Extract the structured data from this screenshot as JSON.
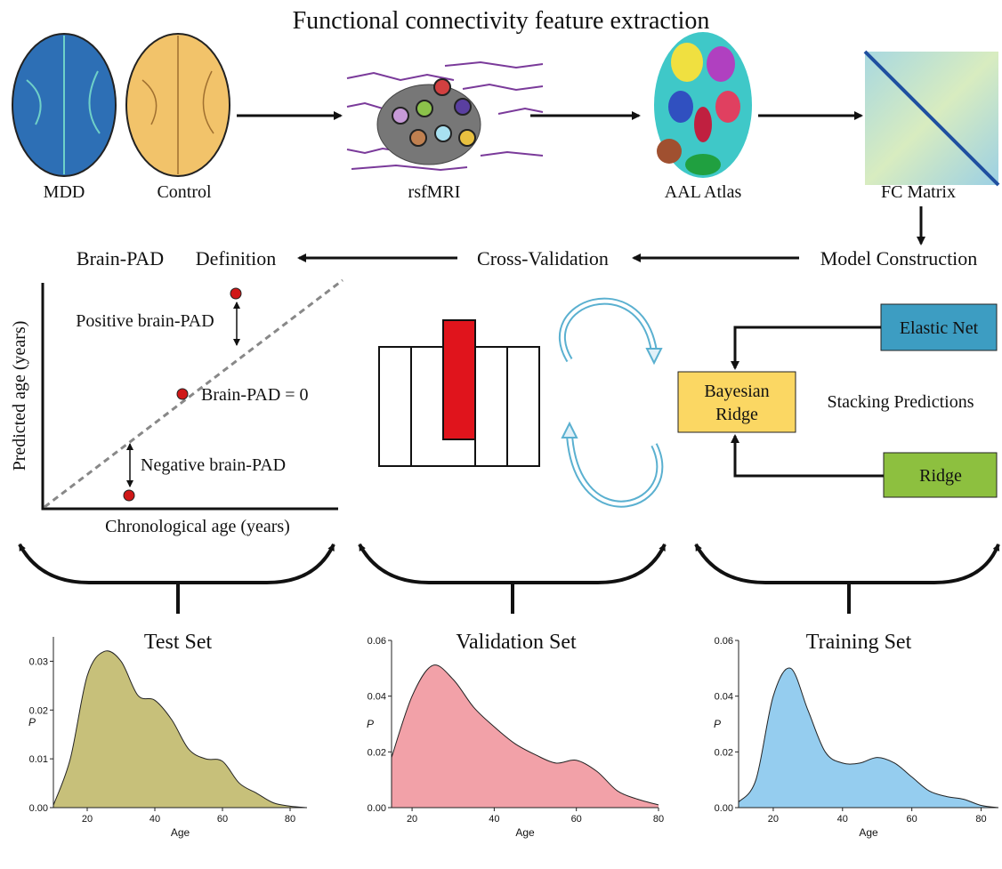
{
  "title": "Functional connectivity feature extraction",
  "images": {
    "mdd": "MDD",
    "control": "Control",
    "rsfmri": "rsfMRI",
    "atlas": "AAL Atlas",
    "fc_matrix": "FC Matrix"
  },
  "steps": {
    "model": "Model Construction",
    "cv": "Cross-Validation",
    "brain_pad": "Brain-PAD",
    "definition": "Definition"
  },
  "brain_pad_plot": {
    "y_axis": "Predicted age (years)",
    "x_axis": "Chronological age (years)",
    "positive": "Positive brain-PAD",
    "zero": "Brain-PAD = 0",
    "negative": "Negative brain-PAD"
  },
  "stacking": {
    "elastic_net": "Elastic Net",
    "ridge": "Ridge",
    "bayesian_ridge": [
      "Bayesian",
      "Ridge"
    ],
    "label": "Stacking Predictions"
  },
  "chart_data": [
    {
      "type": "area",
      "title": "Test Set",
      "x_label": "Age",
      "y_label": "P",
      "color": "#c7c07a",
      "xlim": [
        10,
        85
      ],
      "ylim": [
        0,
        0.035
      ],
      "xticks": [
        20,
        40,
        60,
        80
      ],
      "yticks": [
        {
          "value": 0,
          "label": "0.00"
        },
        0.01,
        0.02,
        0.03
      ],
      "x": [
        10,
        15,
        20,
        25,
        30,
        35,
        40,
        45,
        50,
        55,
        60,
        65,
        70,
        75,
        80,
        85
      ],
      "values": [
        0.0005,
        0.01,
        0.027,
        0.032,
        0.03,
        0.023,
        0.022,
        0.018,
        0.012,
        0.01,
        0.0095,
        0.005,
        0.003,
        0.001,
        0.0003,
        0
      ]
    },
    {
      "type": "area",
      "title": "Validation Set",
      "x_label": "Age",
      "y_label": "P",
      "color": "#f2a1a8",
      "xlim": [
        15,
        80
      ],
      "ylim": [
        0,
        0.06
      ],
      "xticks": [
        20,
        40,
        60,
        80
      ],
      "yticks": [
        {
          "value": 0,
          "label": "0.00"
        },
        0.02,
        0.04,
        0.06
      ],
      "x": [
        15,
        20,
        25,
        30,
        35,
        40,
        45,
        50,
        55,
        60,
        65,
        70,
        75,
        80
      ],
      "values": [
        0.018,
        0.04,
        0.051,
        0.046,
        0.036,
        0.029,
        0.023,
        0.019,
        0.016,
        0.017,
        0.013,
        0.006,
        0.003,
        0.001
      ]
    },
    {
      "type": "area",
      "title": "Training Set",
      "x_label": "Age",
      "y_label": "P",
      "color": "#95cdef",
      "xlim": [
        10,
        85
      ],
      "ylim": [
        0,
        0.06
      ],
      "xticks": [
        20,
        40,
        60,
        80
      ],
      "yticks": [
        {
          "value": 0,
          "label": "0.00"
        },
        0.02,
        0.04,
        0.06
      ],
      "x": [
        10,
        15,
        20,
        25,
        30,
        35,
        40,
        45,
        50,
        55,
        60,
        65,
        70,
        75,
        80,
        85
      ],
      "values": [
        0.002,
        0.01,
        0.04,
        0.05,
        0.035,
        0.02,
        0.016,
        0.016,
        0.018,
        0.016,
        0.011,
        0.006,
        0.004,
        0.003,
        0.0008,
        0
      ]
    }
  ]
}
